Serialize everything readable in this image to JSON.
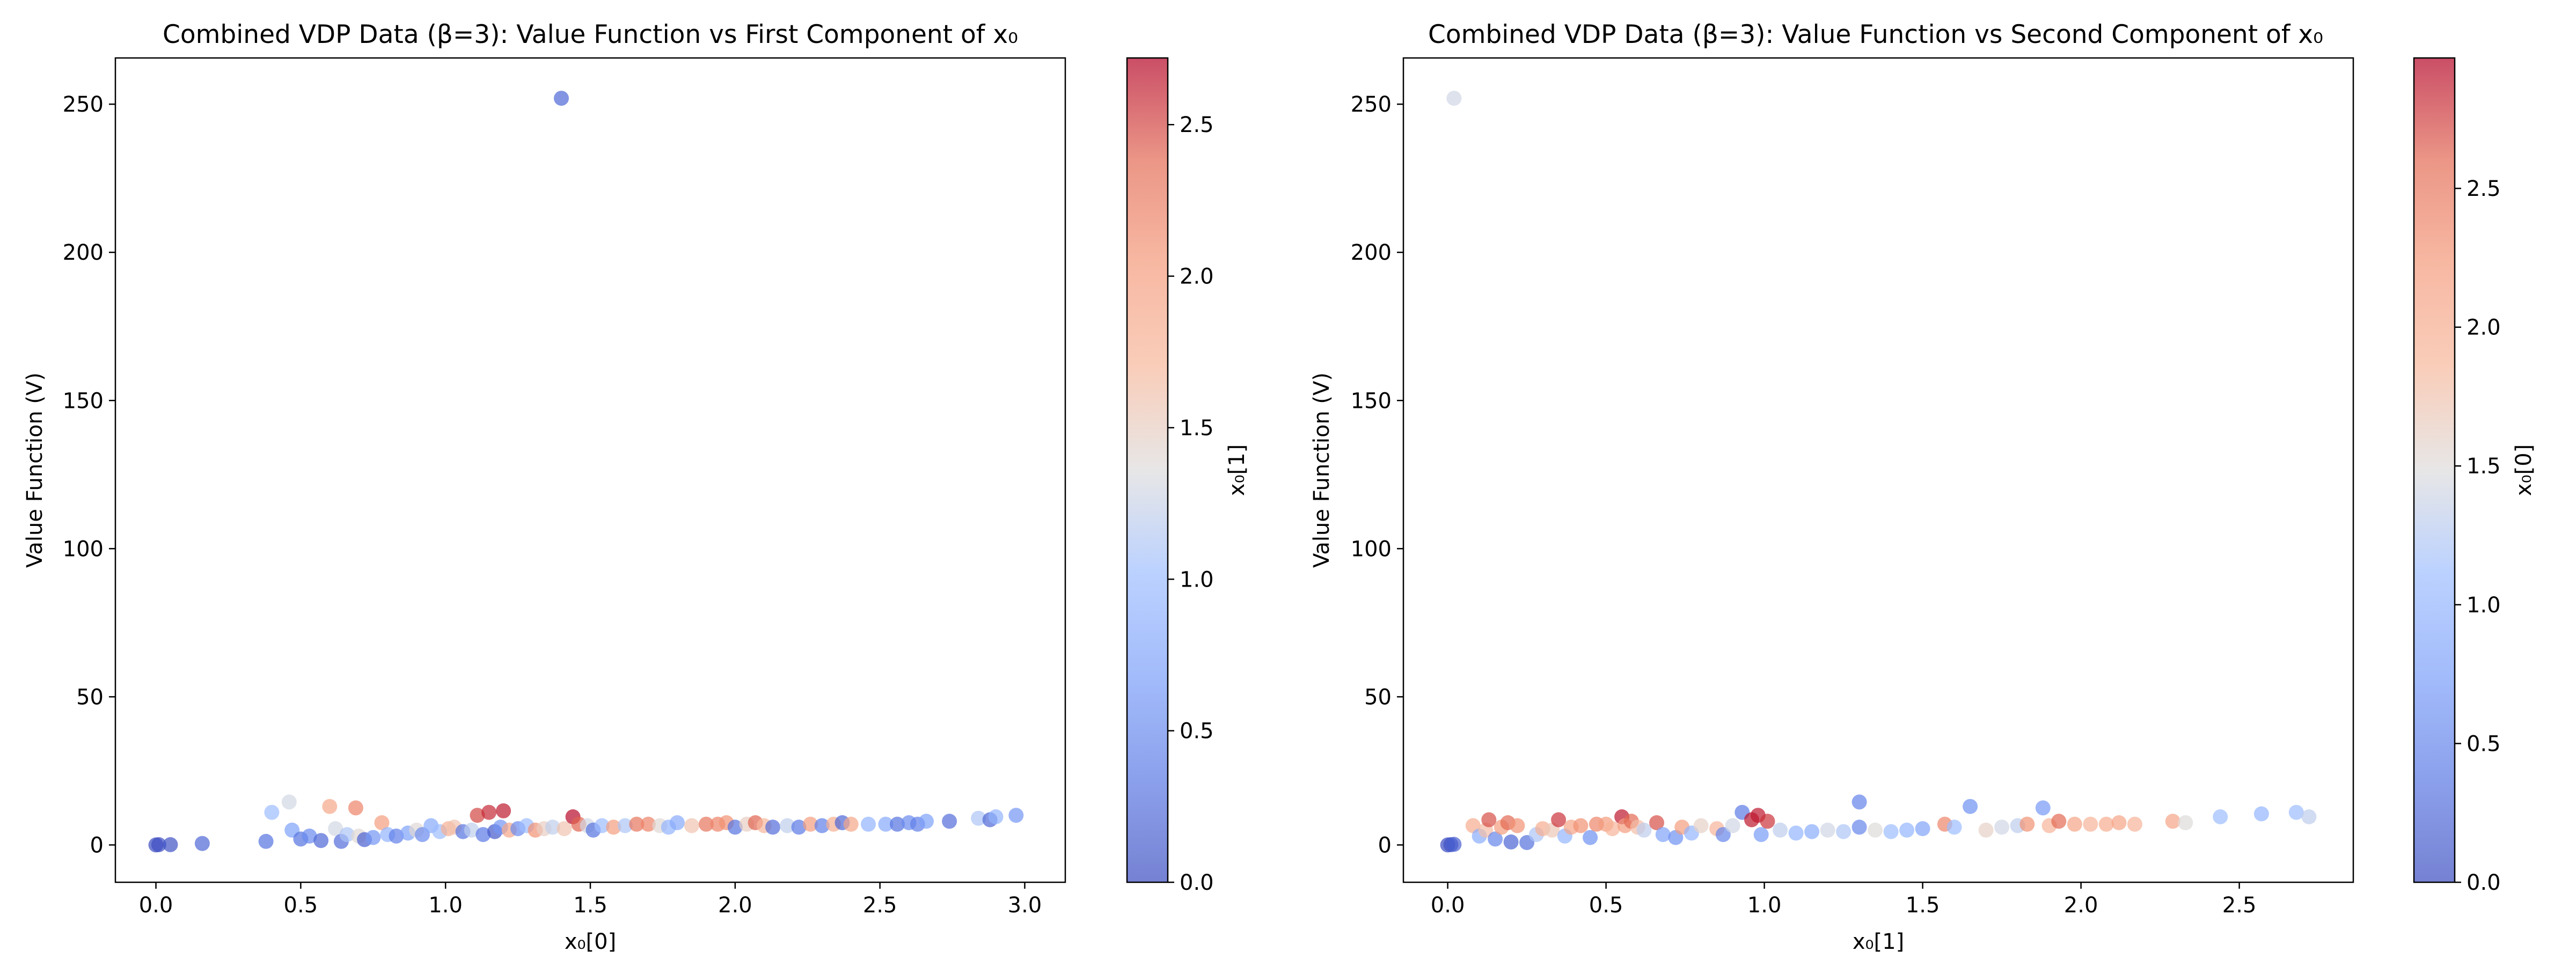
{
  "chart_data": [
    {
      "type": "scatter",
      "title": "Combined VDP Data (β=3): Value Function vs First Component of x₀",
      "xlabel": "x₀[0]",
      "ylabel": "Value Function (V)",
      "xlim": [
        -0.14,
        3.14
      ],
      "ylim": [
        -12.6,
        265.6
      ],
      "xticks": [
        "0.0",
        "0.5",
        "1.0",
        "1.5",
        "2.0",
        "2.5",
        "3.0"
      ],
      "yticks": [
        "0",
        "50",
        "100",
        "150",
        "200",
        "250"
      ],
      "colorbar": {
        "label": "x₀[1]",
        "range": [
          0.0,
          2.72
        ],
        "ticks": [
          "0.0",
          "0.5",
          "1.0",
          "1.5",
          "2.0",
          "2.5"
        ],
        "colormap": "coolwarm"
      },
      "grid": false,
      "marker_alpha": 0.7,
      "points": [
        {
          "x": 0.0,
          "y": 0.0,
          "c": 0.0
        },
        {
          "x": 0.01,
          "y": 0.1,
          "c": 0.02
        },
        {
          "x": 0.05,
          "y": 0.1,
          "c": 0.05
        },
        {
          "x": 0.16,
          "y": 0.5,
          "c": 0.2
        },
        {
          "x": 0.38,
          "y": 1.2,
          "c": 0.3
        },
        {
          "x": 0.4,
          "y": 11.0,
          "c": 1.0
        },
        {
          "x": 0.46,
          "y": 14.5,
          "c": 1.3
        },
        {
          "x": 0.47,
          "y": 5.0,
          "c": 0.7
        },
        {
          "x": 0.5,
          "y": 2.0,
          "c": 0.3
        },
        {
          "x": 0.53,
          "y": 3.0,
          "c": 0.5
        },
        {
          "x": 0.57,
          "y": 1.5,
          "c": 0.2
        },
        {
          "x": 0.6,
          "y": 13.0,
          "c": 1.9
        },
        {
          "x": 0.62,
          "y": 5.5,
          "c": 1.3
        },
        {
          "x": 0.64,
          "y": 1.2,
          "c": 0.25
        },
        {
          "x": 0.66,
          "y": 3.5,
          "c": 1.1
        },
        {
          "x": 0.69,
          "y": 12.5,
          "c": 2.2
        },
        {
          "x": 0.7,
          "y": 3.0,
          "c": 1.4
        },
        {
          "x": 0.72,
          "y": 1.8,
          "c": 0.15
        },
        {
          "x": 0.75,
          "y": 2.5,
          "c": 0.6
        },
        {
          "x": 0.78,
          "y": 7.5,
          "c": 2.0
        },
        {
          "x": 0.8,
          "y": 3.5,
          "c": 0.9
        },
        {
          "x": 0.83,
          "y": 3.0,
          "c": 0.4
        },
        {
          "x": 0.87,
          "y": 4.0,
          "c": 0.7
        },
        {
          "x": 0.9,
          "y": 5.0,
          "c": 1.4
        },
        {
          "x": 0.92,
          "y": 3.5,
          "c": 0.5
        },
        {
          "x": 0.95,
          "y": 6.5,
          "c": 0.8
        },
        {
          "x": 0.98,
          "y": 4.5,
          "c": 1.0
        },
        {
          "x": 1.01,
          "y": 5.5,
          "c": 1.8
        },
        {
          "x": 1.03,
          "y": 6.0,
          "c": 1.6
        },
        {
          "x": 1.06,
          "y": 4.5,
          "c": 0.3
        },
        {
          "x": 1.09,
          "y": 5.0,
          "c": 1.2
        },
        {
          "x": 1.11,
          "y": 10.0,
          "c": 2.5
        },
        {
          "x": 1.13,
          "y": 3.5,
          "c": 0.35
        },
        {
          "x": 1.15,
          "y": 11.0,
          "c": 2.6
        },
        {
          "x": 1.17,
          "y": 4.5,
          "c": 0.1
        },
        {
          "x": 1.19,
          "y": 6.0,
          "c": 0.6
        },
        {
          "x": 1.2,
          "y": 11.5,
          "c": 2.65
        },
        {
          "x": 1.22,
          "y": 5.0,
          "c": 1.9
        },
        {
          "x": 1.25,
          "y": 5.5,
          "c": 0.5
        },
        {
          "x": 1.28,
          "y": 6.5,
          "c": 1.0
        },
        {
          "x": 1.31,
          "y": 5.0,
          "c": 2.1
        },
        {
          "x": 1.34,
          "y": 5.5,
          "c": 1.5
        },
        {
          "x": 1.37,
          "y": 6.0,
          "c": 1.2
        },
        {
          "x": 1.4,
          "y": 252.0,
          "c": 0.2
        },
        {
          "x": 1.41,
          "y": 5.5,
          "c": 1.6
        },
        {
          "x": 1.44,
          "y": 9.5,
          "c": 2.7
        },
        {
          "x": 1.46,
          "y": 7.0,
          "c": 2.4
        },
        {
          "x": 1.49,
          "y": 6.5,
          "c": 1.3
        },
        {
          "x": 1.51,
          "y": 5.0,
          "c": 0.3
        },
        {
          "x": 1.54,
          "y": 6.5,
          "c": 1.0
        },
        {
          "x": 1.58,
          "y": 6.0,
          "c": 2.0
        },
        {
          "x": 1.62,
          "y": 6.5,
          "c": 1.1
        },
        {
          "x": 1.66,
          "y": 7.0,
          "c": 2.3
        },
        {
          "x": 1.7,
          "y": 7.0,
          "c": 2.2
        },
        {
          "x": 1.74,
          "y": 6.5,
          "c": 1.4
        },
        {
          "x": 1.77,
          "y": 6.0,
          "c": 0.9
        },
        {
          "x": 1.8,
          "y": 7.5,
          "c": 0.8
        },
        {
          "x": 1.85,
          "y": 6.5,
          "c": 1.6
        },
        {
          "x": 1.9,
          "y": 7.0,
          "c": 2.3
        },
        {
          "x": 1.94,
          "y": 7.0,
          "c": 2.2
        },
        {
          "x": 1.97,
          "y": 7.5,
          "c": 2.1
        },
        {
          "x": 2.0,
          "y": 6.0,
          "c": 0.3
        },
        {
          "x": 2.04,
          "y": 7.0,
          "c": 1.5
        },
        {
          "x": 2.07,
          "y": 7.5,
          "c": 2.4
        },
        {
          "x": 2.1,
          "y": 6.5,
          "c": 1.7
        },
        {
          "x": 2.13,
          "y": 6.0,
          "c": 0.25
        },
        {
          "x": 2.18,
          "y": 6.5,
          "c": 1.2
        },
        {
          "x": 2.22,
          "y": 6.0,
          "c": 0.35
        },
        {
          "x": 2.26,
          "y": 7.0,
          "c": 2.0
        },
        {
          "x": 2.3,
          "y": 6.5,
          "c": 0.4
        },
        {
          "x": 2.34,
          "y": 7.0,
          "c": 1.8
        },
        {
          "x": 2.37,
          "y": 7.5,
          "c": 0.2
        },
        {
          "x": 2.4,
          "y": 7.0,
          "c": 1.9
        },
        {
          "x": 2.46,
          "y": 7.0,
          "c": 0.9
        },
        {
          "x": 2.52,
          "y": 7.0,
          "c": 0.8
        },
        {
          "x": 2.56,
          "y": 7.0,
          "c": 0.3
        },
        {
          "x": 2.6,
          "y": 7.5,
          "c": 0.5
        },
        {
          "x": 2.63,
          "y": 7.0,
          "c": 0.4
        },
        {
          "x": 2.66,
          "y": 8.0,
          "c": 0.7
        },
        {
          "x": 2.74,
          "y": 8.0,
          "c": 0.25
        },
        {
          "x": 2.84,
          "y": 9.0,
          "c": 1.1
        },
        {
          "x": 2.88,
          "y": 8.5,
          "c": 0.2
        },
        {
          "x": 2.9,
          "y": 9.5,
          "c": 0.9
        },
        {
          "x": 2.97,
          "y": 10.0,
          "c": 0.6
        }
      ]
    },
    {
      "type": "scatter",
      "title": "Combined VDP Data (β=3): Value Function vs Second Component of x₀",
      "xlabel": "x₀[1]",
      "ylabel": "Value Function (V)",
      "xlim": [
        -0.14,
        2.86
      ],
      "ylim": [
        -12.6,
        265.6
      ],
      "xticks": [
        "0.0",
        "0.5",
        "1.0",
        "1.5",
        "2.0",
        "2.5"
      ],
      "yticks": [
        "0",
        "50",
        "100",
        "150",
        "200",
        "250"
      ],
      "colorbar": {
        "label": "x₀[0]",
        "range": [
          0.0,
          2.97
        ],
        "ticks": [
          "0.0",
          "0.5",
          "1.0",
          "1.5",
          "2.0",
          "2.5"
        ],
        "colormap": "coolwarm"
      },
      "grid": false,
      "marker_alpha": 0.7,
      "points": [
        {
          "x": 0.0,
          "y": 0.0,
          "c": 0.0
        },
        {
          "x": 0.01,
          "y": 0.1,
          "c": 0.05
        },
        {
          "x": 0.02,
          "y": 0.2,
          "c": 0.16
        },
        {
          "x": 0.02,
          "y": 252.0,
          "c": 1.4
        },
        {
          "x": 0.08,
          "y": 6.5,
          "c": 2.0
        },
        {
          "x": 0.1,
          "y": 3.0,
          "c": 0.9
        },
        {
          "x": 0.12,
          "y": 5.0,
          "c": 1.8
        },
        {
          "x": 0.13,
          "y": 8.5,
          "c": 2.7
        },
        {
          "x": 0.15,
          "y": 2.0,
          "c": 0.5
        },
        {
          "x": 0.17,
          "y": 6.0,
          "c": 2.2
        },
        {
          "x": 0.19,
          "y": 7.5,
          "c": 2.6
        },
        {
          "x": 0.2,
          "y": 1.0,
          "c": 0.2
        },
        {
          "x": 0.22,
          "y": 6.5,
          "c": 2.3
        },
        {
          "x": 0.25,
          "y": 0.8,
          "c": 0.3
        },
        {
          "x": 0.28,
          "y": 3.5,
          "c": 1.2
        },
        {
          "x": 0.3,
          "y": 5.5,
          "c": 2.0
        },
        {
          "x": 0.33,
          "y": 5.0,
          "c": 1.7
        },
        {
          "x": 0.35,
          "y": 8.5,
          "c": 2.8
        },
        {
          "x": 0.37,
          "y": 3.0,
          "c": 1.0
        },
        {
          "x": 0.39,
          "y": 6.0,
          "c": 2.1
        },
        {
          "x": 0.42,
          "y": 6.5,
          "c": 2.3
        },
        {
          "x": 0.45,
          "y": 2.5,
          "c": 0.6
        },
        {
          "x": 0.47,
          "y": 7.0,
          "c": 2.4
        },
        {
          "x": 0.5,
          "y": 7.0,
          "c": 2.2
        },
        {
          "x": 0.52,
          "y": 5.5,
          "c": 1.9
        },
        {
          "x": 0.55,
          "y": 9.5,
          "c": 2.9
        },
        {
          "x": 0.56,
          "y": 6.5,
          "c": 2.2
        },
        {
          "x": 0.58,
          "y": 8.0,
          "c": 2.6
        },
        {
          "x": 0.6,
          "y": 6.0,
          "c": 1.8
        },
        {
          "x": 0.62,
          "y": 5.0,
          "c": 1.3
        },
        {
          "x": 0.66,
          "y": 7.5,
          "c": 2.7
        },
        {
          "x": 0.68,
          "y": 3.5,
          "c": 0.8
        },
        {
          "x": 0.72,
          "y": 2.5,
          "c": 0.6
        },
        {
          "x": 0.74,
          "y": 6.0,
          "c": 2.2
        },
        {
          "x": 0.77,
          "y": 4.0,
          "c": 1.0
        },
        {
          "x": 0.8,
          "y": 6.5,
          "c": 1.6
        },
        {
          "x": 0.85,
          "y": 5.5,
          "c": 1.9
        },
        {
          "x": 0.87,
          "y": 3.5,
          "c": 0.5
        },
        {
          "x": 0.9,
          "y": 6.5,
          "c": 1.4
        },
        {
          "x": 0.93,
          "y": 11.0,
          "c": 0.4
        },
        {
          "x": 0.96,
          "y": 8.5,
          "c": 2.9
        },
        {
          "x": 0.98,
          "y": 10.0,
          "c": 2.9
        },
        {
          "x": 0.99,
          "y": 3.5,
          "c": 0.7
        },
        {
          "x": 1.01,
          "y": 8.0,
          "c": 2.8
        },
        {
          "x": 1.05,
          "y": 5.0,
          "c": 1.3
        },
        {
          "x": 1.1,
          "y": 4.0,
          "c": 1.0
        },
        {
          "x": 1.15,
          "y": 4.5,
          "c": 0.9
        },
        {
          "x": 1.2,
          "y": 5.0,
          "c": 1.4
        },
        {
          "x": 1.25,
          "y": 4.5,
          "c": 1.2
        },
        {
          "x": 1.3,
          "y": 14.5,
          "c": 0.46
        },
        {
          "x": 1.3,
          "y": 6.0,
          "c": 0.5
        },
        {
          "x": 1.35,
          "y": 5.0,
          "c": 1.5
        },
        {
          "x": 1.4,
          "y": 4.5,
          "c": 1.1
        },
        {
          "x": 1.45,
          "y": 5.0,
          "c": 1.0
        },
        {
          "x": 1.5,
          "y": 5.5,
          "c": 0.8
        },
        {
          "x": 1.57,
          "y": 7.0,
          "c": 2.4
        },
        {
          "x": 1.6,
          "y": 6.0,
          "c": 1.1
        },
        {
          "x": 1.65,
          "y": 13.0,
          "c": 0.6
        },
        {
          "x": 1.7,
          "y": 5.0,
          "c": 1.6
        },
        {
          "x": 1.75,
          "y": 6.0,
          "c": 1.4
        },
        {
          "x": 1.8,
          "y": 6.5,
          "c": 1.3
        },
        {
          "x": 1.83,
          "y": 7.0,
          "c": 2.3
        },
        {
          "x": 1.88,
          "y": 12.5,
          "c": 0.69
        },
        {
          "x": 1.9,
          "y": 6.5,
          "c": 1.9
        },
        {
          "x": 1.93,
          "y": 8.0,
          "c": 2.6
        },
        {
          "x": 1.98,
          "y": 7.0,
          "c": 2.1
        },
        {
          "x": 2.03,
          "y": 7.0,
          "c": 1.9
        },
        {
          "x": 2.08,
          "y": 7.0,
          "c": 2.0
        },
        {
          "x": 2.12,
          "y": 7.5,
          "c": 2.1
        },
        {
          "x": 2.17,
          "y": 7.0,
          "c": 1.9
        },
        {
          "x": 2.29,
          "y": 8.0,
          "c": 2.1
        },
        {
          "x": 2.33,
          "y": 7.5,
          "c": 1.5
        },
        {
          "x": 2.44,
          "y": 9.5,
          "c": 1.1
        },
        {
          "x": 2.57,
          "y": 10.5,
          "c": 1.0
        },
        {
          "x": 2.68,
          "y": 11.0,
          "c": 1.1
        },
        {
          "x": 2.72,
          "y": 9.5,
          "c": 1.3
        }
      ]
    }
  ]
}
